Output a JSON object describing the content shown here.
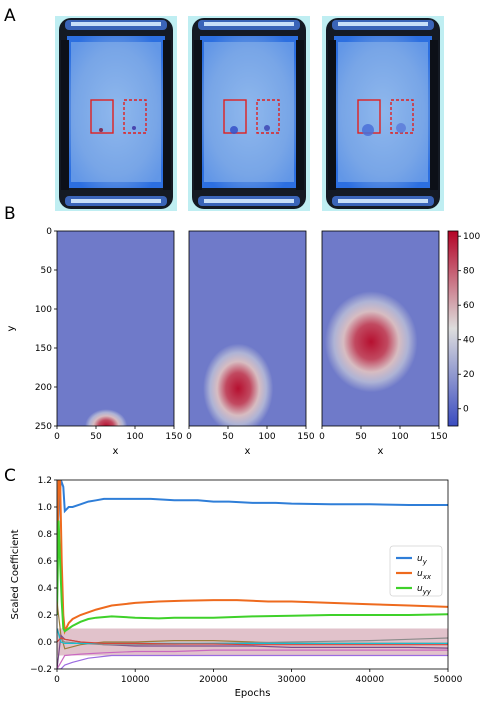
{
  "panels": {
    "a": {
      "letter": "A"
    },
    "b": {
      "letter": "B"
    },
    "c": {
      "letter": "C"
    }
  },
  "colors": {
    "photo_backdrop": "#bfeef2",
    "photo_frame": "#141a24",
    "photo_glow": "#2c6fe0",
    "photo_chamber": "#8fb8ec",
    "roi_box": "#e02020",
    "dye_spot": "#3a2a8a",
    "heat_low": "#3b4cc0",
    "heat_mid": "#dcdde0",
    "heat_high": "#b40426",
    "band": "#c98fa0"
  },
  "photos": [
    {
      "dye_radius_left": 2,
      "dye_radius_right": 2,
      "dye_color_left": "#7a1a40",
      "dye_color_right": "#3a2aa0"
    },
    {
      "dye_radius_left": 4,
      "dye_radius_right": 3,
      "dye_color_left": "#3550c8",
      "dye_color_right": "#3a40b0"
    },
    {
      "dye_radius_left": 6,
      "dye_radius_right": 5,
      "dye_color_left": "#4a70d8",
      "dye_color_right": "#5a78d8"
    }
  ],
  "chart_data": [
    {
      "type": "heatmap",
      "panel": "B",
      "xlabel": "x",
      "ylabel": "y",
      "xlim": [
        0,
        150
      ],
      "ylim": [
        250,
        0
      ],
      "x_ticks": [
        "0",
        "50",
        "100",
        "150"
      ],
      "y_ticks": [
        "0",
        "50",
        "100",
        "150",
        "200",
        "250"
      ],
      "colorbar": {
        "ticks": [
          "100",
          "80",
          "60",
          "40",
          "20",
          "0"
        ],
        "tick_values": [
          100,
          80,
          60,
          40,
          20,
          0
        ],
        "range": [
          -10,
          103
        ]
      },
      "frames": [
        {
          "blob_x": 63,
          "blob_y": 250,
          "blob_rx": 15,
          "blob_ry": 12,
          "peak": 100
        },
        {
          "blob_x": 63,
          "blob_y": 202,
          "blob_rx": 25,
          "blob_ry": 32,
          "peak": 100
        },
        {
          "blob_x": 63,
          "blob_y": 142,
          "blob_rx": 33,
          "blob_ry": 36,
          "peak": 100
        }
      ]
    },
    {
      "type": "line",
      "panel": "C",
      "xlabel": "Epochs",
      "ylabel": "Scaled Coefficient",
      "xlim": [
        0,
        50000
      ],
      "ylim": [
        -0.2,
        1.2
      ],
      "x_ticks": [
        "0",
        "10000",
        "20000",
        "30000",
        "40000",
        "50000"
      ],
      "x_tick_values": [
        0,
        10000,
        20000,
        30000,
        40000,
        50000
      ],
      "y_ticks": [
        "1.2",
        "1.0",
        "0.8",
        "0.6",
        "0.4",
        "0.2",
        "0.0",
        "−0.2"
      ],
      "y_tick_values": [
        1.2,
        1.0,
        0.8,
        0.6,
        0.4,
        0.2,
        0.0,
        -0.2
      ],
      "band": [
        -0.1,
        0.1
      ],
      "legend": [
        {
          "label": "u",
          "sub": "y",
          "color": "#2f7ed8"
        },
        {
          "label": "u",
          "sub": "xx",
          "color": "#ee6a1e"
        },
        {
          "label": "u",
          "sub": "yy",
          "color": "#3fd12a"
        }
      ],
      "series": [
        {
          "name": "u_y",
          "color": "#2f7ed8",
          "x": [
            0,
            150,
            300,
            500,
            800,
            1000,
            1500,
            2000,
            3000,
            4000,
            5000,
            6000,
            7000,
            8000,
            10000,
            12000,
            15000,
            18000,
            20000,
            22000,
            25000,
            28000,
            30000,
            35000,
            40000,
            45000,
            50000
          ],
          "y": [
            0.4,
            0.9,
            1.05,
            1.2,
            1.15,
            0.97,
            1.0,
            1.0,
            1.02,
            1.04,
            1.05,
            1.06,
            1.06,
            1.06,
            1.06,
            1.06,
            1.05,
            1.05,
            1.04,
            1.04,
            1.03,
            1.03,
            1.025,
            1.02,
            1.02,
            1.015,
            1.015
          ]
        },
        {
          "name": "u_xx",
          "color": "#ee6a1e",
          "x": [
            0,
            200,
            400,
            600,
            800,
            1000,
            1500,
            2000,
            3000,
            4000,
            5000,
            7000,
            10000,
            13000,
            16000,
            20000,
            23000,
            27000,
            30000,
            35000,
            40000,
            45000,
            50000
          ],
          "y": [
            0.5,
            1.2,
            1.2,
            0.6,
            0.2,
            0.08,
            0.14,
            0.17,
            0.2,
            0.22,
            0.24,
            0.27,
            0.29,
            0.3,
            0.305,
            0.31,
            0.31,
            0.3,
            0.3,
            0.29,
            0.28,
            0.27,
            0.26
          ]
        },
        {
          "name": "u_yy",
          "color": "#3fd12a",
          "x": [
            0,
            200,
            400,
            600,
            800,
            1000,
            1500,
            2000,
            3000,
            4000,
            5000,
            7000,
            10000,
            13000,
            15000,
            20000,
            25000,
            30000,
            35000,
            40000,
            45000,
            50000
          ],
          "y": [
            0.2,
            0.9,
            0.6,
            0.3,
            0.1,
            0.08,
            0.1,
            0.12,
            0.15,
            0.17,
            0.18,
            0.19,
            0.18,
            0.175,
            0.18,
            0.18,
            0.19,
            0.195,
            0.2,
            0.2,
            0.2,
            0.205
          ]
        },
        {
          "color": "#9c7e3a",
          "x": [
            0,
            500,
            1000,
            3000,
            6000,
            10000,
            15000,
            20000,
            25000,
            30000,
            35000,
            40000,
            45000,
            50000
          ],
          "y": [
            0.3,
            0.05,
            -0.05,
            -0.02,
            0.0,
            0.0,
            0.01,
            0.01,
            0.0,
            -0.01,
            -0.01,
            -0.01,
            -0.01,
            -0.01
          ]
        },
        {
          "color": "#7a4a8a",
          "x": [
            0,
            500,
            1000,
            3000,
            6000,
            10000,
            15000,
            20000,
            25000,
            30000,
            35000,
            40000,
            45000,
            50000
          ],
          "y": [
            -0.2,
            0.05,
            0.02,
            0.0,
            -0.02,
            -0.03,
            -0.03,
            -0.03,
            -0.03,
            -0.04,
            -0.04,
            -0.04,
            -0.04,
            -0.045
          ]
        },
        {
          "color": "#c968c0",
          "x": [
            0,
            500,
            1000,
            3000,
            6000,
            10000,
            15000,
            20000,
            25000,
            30000,
            35000,
            40000,
            45000,
            50000
          ],
          "y": [
            -0.2,
            -0.15,
            -0.1,
            -0.09,
            -0.08,
            -0.07,
            -0.07,
            -0.06,
            -0.06,
            -0.06,
            -0.06,
            -0.06,
            -0.06,
            -0.06
          ]
        },
        {
          "color": "#9b6be0",
          "x": [
            0,
            500,
            1000,
            2000,
            4000,
            7000,
            10000,
            15000,
            20000,
            25000,
            30000,
            35000,
            40000,
            45000,
            50000
          ],
          "y": [
            -0.2,
            -0.2,
            -0.17,
            -0.15,
            -0.12,
            -0.1,
            -0.1,
            -0.1,
            -0.1,
            -0.1,
            -0.1,
            -0.1,
            -0.1,
            -0.1,
            -0.1
          ]
        },
        {
          "color": "#8c8c8c",
          "x": [
            0,
            500,
            1000,
            3000,
            6000,
            10000,
            15000,
            20000,
            25000,
            30000,
            35000,
            40000,
            45000,
            50000
          ],
          "y": [
            0.1,
            0.02,
            0.0,
            -0.01,
            -0.02,
            -0.02,
            -0.015,
            -0.01,
            -0.005,
            0.0,
            0.005,
            0.01,
            0.02,
            0.03
          ]
        },
        {
          "color": "#17becf",
          "x": [
            0,
            500,
            1000,
            3000,
            6000,
            10000,
            15000,
            20000,
            25000,
            30000,
            35000,
            40000,
            45000,
            50000
          ],
          "y": [
            0.1,
            0.0,
            -0.01,
            -0.01,
            -0.01,
            -0.01,
            -0.01,
            -0.01,
            -0.01,
            -0.01,
            -0.01,
            -0.01,
            -0.01,
            -0.01
          ]
        },
        {
          "color": "#d6453a",
          "x": [
            0,
            500,
            1000,
            3000,
            6000,
            10000,
            15000,
            20000,
            25000,
            30000,
            35000,
            40000,
            45000,
            50000
          ],
          "y": [
            0.0,
            0.03,
            0.02,
            0.0,
            -0.01,
            -0.01,
            -0.015,
            -0.015,
            -0.02,
            -0.02,
            -0.02,
            -0.02,
            -0.02,
            -0.02
          ]
        }
      ]
    }
  ]
}
